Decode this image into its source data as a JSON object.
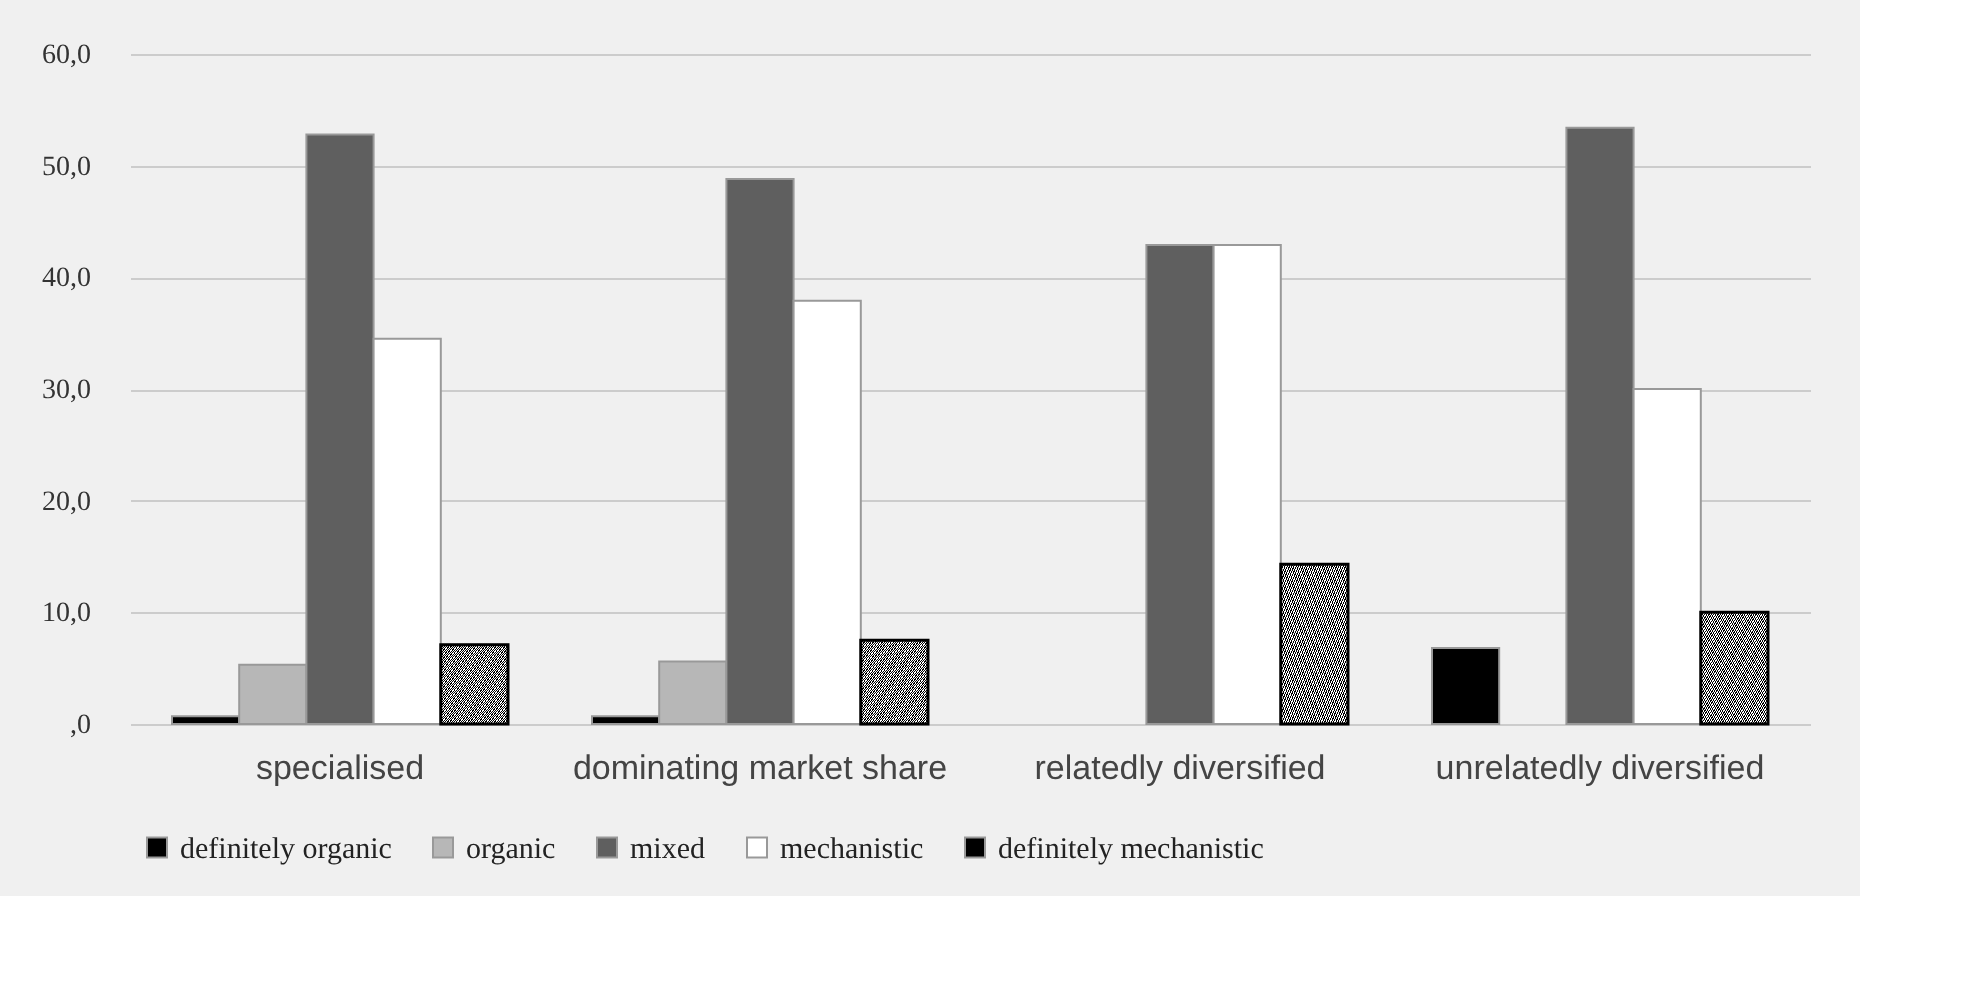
{
  "chart_data": {
    "type": "bar",
    "categories": [
      "specialised",
      "dominating market share",
      "relatedly diversified",
      "unrelatedly diversified"
    ],
    "series": [
      {
        "name": "definitely organic",
        "color": "#000000",
        "values": [
          0.7,
          0.7,
          null,
          6.8
        ]
      },
      {
        "name": "organic",
        "color": "#b7b7b7",
        "values": [
          5.3,
          5.6,
          null,
          null
        ]
      },
      {
        "name": "mixed",
        "color": "#5f5f5f",
        "values": [
          52.8,
          48.8,
          42.9,
          53.4
        ]
      },
      {
        "name": "mechanistic",
        "color": "#ffffff",
        "values": [
          34.5,
          37.9,
          42.9,
          30.0
        ]
      },
      {
        "name": "definitely mechanistic",
        "color": "#000000",
        "values": [
          7.1,
          7.5,
          14.3,
          10.0
        ]
      }
    ],
    "ylim": [
      0,
      60
    ],
    "yticks": [
      {
        "value": 0,
        "label": ",0"
      },
      {
        "value": 10,
        "label": "10,0"
      },
      {
        "value": 20,
        "label": "20,0"
      },
      {
        "value": 30,
        "label": "30,0"
      },
      {
        "value": 40,
        "label": "40,0"
      },
      {
        "value": 50,
        "label": "50,0"
      },
      {
        "value": 60,
        "label": "60,0"
      }
    ],
    "grid": "y",
    "legend": "bottom"
  }
}
